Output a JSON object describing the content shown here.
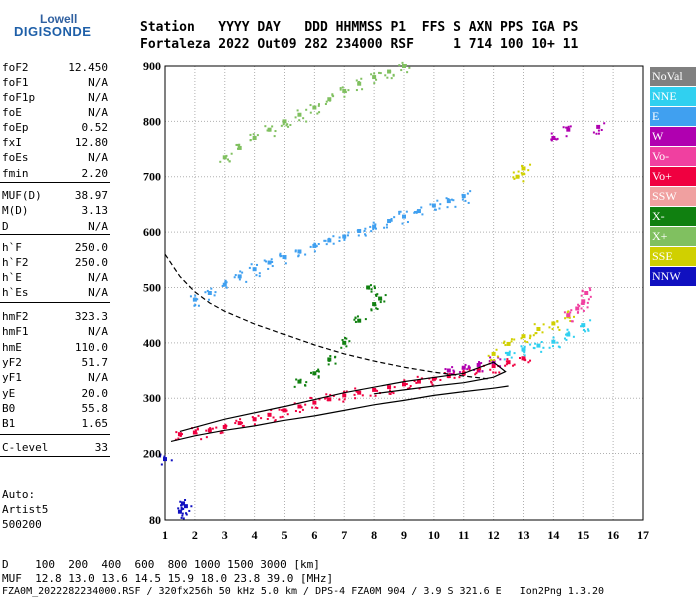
{
  "logo": {
    "line1": "Lowell",
    "line2": "DIGISONDE"
  },
  "header": {
    "line1": "Station   YYYY DAY   DDD HHMMSS P1  FFS S AXN PPS IGA PS",
    "line2": "Fortaleza 2022 Out09 282 234000 RSF     1 714 100 10+ 11"
  },
  "params": [
    {
      "name": "foF2",
      "value": "12.450"
    },
    {
      "name": "foF1",
      "value": "N/A"
    },
    {
      "name": "foF1p",
      "value": "N/A"
    },
    {
      "name": "foE",
      "value": "N/A"
    },
    {
      "name": "foEp",
      "value": "0.52"
    },
    {
      "name": "fxI",
      "value": "12.80"
    },
    {
      "name": "foEs",
      "value": "N/A"
    },
    {
      "name": "fmin",
      "value": "2.20"
    },
    {
      "name": "MUF(D)",
      "value": "38.97"
    },
    {
      "name": "M(D)",
      "value": "3.13"
    },
    {
      "name": "D",
      "value": "N/A"
    },
    {
      "name": "h`F",
      "value": "250.0"
    },
    {
      "name": "h`F2",
      "value": "250.0"
    },
    {
      "name": "h`E",
      "value": "N/A"
    },
    {
      "name": "h`Es",
      "value": "N/A"
    },
    {
      "name": "hmF2",
      "value": "323.3"
    },
    {
      "name": "hmF1",
      "value": "N/A"
    },
    {
      "name": "hmE",
      "value": "110.0"
    },
    {
      "name": "yF2",
      "value": "51.7"
    },
    {
      "name": "yF1",
      "value": "N/A"
    },
    {
      "name": "yE",
      "value": "20.0"
    },
    {
      "name": "B0",
      "value": "55.8"
    },
    {
      "name": "B1",
      "value": "1.65"
    },
    {
      "name": "C-level",
      "value": "33"
    }
  ],
  "auto": {
    "line1": "Auto:",
    "line2": "Artist5",
    "line3": "500200"
  },
  "legend": [
    {
      "label": "NoVal",
      "color": "#808080"
    },
    {
      "label": "NNE",
      "color": "#30d0f0"
    },
    {
      "label": "E",
      "color": "#40a0f0"
    },
    {
      "label": "W",
      "color": "#b000b0"
    },
    {
      "label": "Vo-",
      "color": "#f040a0"
    },
    {
      "label": "Vo+",
      "color": "#f00040"
    },
    {
      "label": "SSW",
      "color": "#f0a0a0"
    },
    {
      "label": "X-",
      "color": "#108010"
    },
    {
      "label": "X+",
      "color": "#80c060"
    },
    {
      "label": "SSE",
      "color": "#d0d000"
    },
    {
      "label": "NNW",
      "color": "#1010c0"
    }
  ],
  "footer": {
    "line1": "D    100  200  400  600  800 1000 1500 3000 [km]",
    "line2": "MUF  12.8 13.0 13.6 14.5 15.9 18.0 23.8 39.0 [MHz]",
    "line3": "FZA0M_2022282234000.RSF / 320fx256h 50 kHz 5.0 km / DPS-4 FZA0M 904 / 3.9 S 321.6 E   Ion2Png 1.3.20"
  },
  "chart_data": {
    "type": "scatter",
    "title": "",
    "xlabel": "",
    "ylabel": "",
    "xlim": [
      1,
      17
    ],
    "ylim": [
      80,
      900
    ],
    "x_ticks": [
      1,
      2,
      3,
      4,
      5,
      6,
      7,
      8,
      9,
      10,
      11,
      12,
      13,
      14,
      15,
      16,
      17
    ],
    "y_ticks": [
      80,
      200,
      300,
      400,
      500,
      600,
      700,
      800,
      900
    ],
    "grid": true,
    "legend_position": "right",
    "series": [
      {
        "color": "#f00040",
        "points": [
          [
            1.5,
            235
          ],
          [
            2,
            238
          ],
          [
            2.5,
            242
          ],
          [
            3,
            248
          ],
          [
            3.5,
            255
          ],
          [
            4,
            262
          ],
          [
            4.5,
            270
          ],
          [
            5,
            278
          ],
          [
            5.5,
            285
          ],
          [
            6,
            292
          ],
          [
            6.5,
            298
          ],
          [
            7,
            305
          ],
          [
            7.5,
            310
          ],
          [
            8,
            315
          ],
          [
            8.5,
            320
          ],
          [
            9,
            325
          ],
          [
            9.5,
            330
          ],
          [
            10,
            335
          ],
          [
            10.5,
            340
          ],
          [
            11,
            345
          ],
          [
            11.5,
            350
          ],
          [
            12,
            358
          ],
          [
            12.5,
            365
          ],
          [
            13,
            372
          ]
        ]
      },
      {
        "color": "#40a0f0",
        "points": [
          [
            2,
            478
          ],
          [
            2.5,
            490
          ],
          [
            3,
            505
          ],
          [
            3.5,
            520
          ],
          [
            4,
            533
          ],
          [
            4.5,
            545
          ],
          [
            5,
            555
          ],
          [
            5.5,
            565
          ],
          [
            6,
            575
          ],
          [
            6.5,
            585
          ],
          [
            7,
            592
          ],
          [
            7.5,
            602
          ],
          [
            8,
            610
          ],
          [
            8.5,
            620
          ],
          [
            9,
            628
          ],
          [
            9.5,
            638
          ],
          [
            10,
            648
          ],
          [
            10.5,
            656
          ],
          [
            11,
            665
          ]
        ]
      },
      {
        "color": "#80c060",
        "points": [
          [
            3,
            735
          ],
          [
            3.5,
            752
          ],
          [
            4,
            770
          ],
          [
            4.5,
            785
          ],
          [
            5,
            800
          ],
          [
            5.5,
            812
          ],
          [
            6,
            825
          ],
          [
            6.5,
            840
          ],
          [
            7,
            855
          ],
          [
            7.5,
            868
          ],
          [
            8,
            880
          ],
          [
            8.5,
            890
          ],
          [
            9,
            900
          ]
        ]
      },
      {
        "color": "#b000b0",
        "points": [
          [
            10.5,
            350
          ],
          [
            11,
            355
          ],
          [
            11.5,
            360
          ],
          [
            12,
            365
          ],
          [
            14,
            770
          ],
          [
            14.5,
            785
          ],
          [
            15.5,
            790
          ]
        ]
      },
      {
        "color": "#30d0f0",
        "points": [
          [
            12.5,
            380
          ],
          [
            13,
            388
          ],
          [
            13.5,
            395
          ],
          [
            14,
            402
          ],
          [
            14.5,
            415
          ],
          [
            15,
            432
          ]
        ]
      },
      {
        "color": "#d0d000",
        "points": [
          [
            12,
            380
          ],
          [
            12.5,
            398
          ],
          [
            13,
            412
          ],
          [
            13.5,
            425
          ],
          [
            14,
            435
          ],
          [
            14.5,
            448
          ],
          [
            12.8,
            700
          ],
          [
            13,
            715
          ]
        ]
      },
      {
        "color": "#108010",
        "points": [
          [
            5.5,
            330
          ],
          [
            6,
            345
          ],
          [
            6.5,
            370
          ],
          [
            7,
            400
          ],
          [
            7.5,
            440
          ],
          [
            8,
            470
          ],
          [
            7.8,
            500
          ],
          [
            8.2,
            480
          ]
        ]
      },
      {
        "color": "#f040a0",
        "points": [
          [
            14.5,
            450
          ],
          [
            14.8,
            462
          ],
          [
            15,
            475
          ],
          [
            15.1,
            490
          ]
        ]
      },
      {
        "color": "#1010c0",
        "points": [
          [
            1.5,
            95
          ],
          [
            1.7,
            105
          ],
          [
            1.6,
            110
          ],
          [
            1,
            190
          ]
        ]
      }
    ],
    "lines": [
      {
        "style": "dashed",
        "points": [
          [
            1,
            560
          ],
          [
            1.5,
            520
          ],
          [
            2,
            492
          ],
          [
            2.5,
            472
          ],
          [
            3,
            457
          ],
          [
            4,
            434
          ],
          [
            5,
            415
          ],
          [
            6,
            396
          ],
          [
            7,
            380
          ],
          [
            8,
            367
          ],
          [
            9,
            356
          ],
          [
            10,
            347
          ],
          [
            11,
            340
          ],
          [
            11.8,
            335
          ]
        ]
      },
      {
        "style": "solid",
        "points": [
          [
            1.2,
            222
          ],
          [
            2,
            232
          ],
          [
            3,
            242
          ],
          [
            4,
            250
          ],
          [
            5,
            260
          ],
          [
            6,
            268
          ],
          [
            7,
            278
          ],
          [
            8,
            288
          ],
          [
            9,
            296
          ],
          [
            10,
            305
          ],
          [
            11,
            312
          ],
          [
            12,
            318
          ],
          [
            12.5,
            322
          ]
        ]
      },
      {
        "style": "solid",
        "points": [
          [
            1.5,
            240
          ],
          [
            3,
            262
          ],
          [
            5,
            285
          ],
          [
            7,
            310
          ],
          [
            9,
            330
          ],
          [
            11,
            345
          ],
          [
            12,
            365
          ],
          [
            12.4,
            348
          ],
          [
            12,
            338
          ],
          [
            11,
            328
          ],
          [
            10,
            322
          ],
          [
            9,
            315
          ],
          [
            8,
            308
          ]
        ]
      }
    ]
  }
}
